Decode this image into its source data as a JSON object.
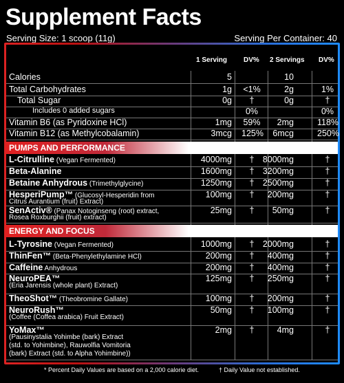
{
  "title": "Supplement Facts",
  "serving_size": "Serving Size: 1 scoop (11g)",
  "serving_per_container": "Serving Per Container: 40",
  "headers": {
    "one": "1 Serving",
    "dv1": "DV%",
    "two": "2 Servings",
    "dv2": "DV%"
  },
  "basic": [
    {
      "label": "Calories",
      "v1": "5",
      "d1": "",
      "v2": "10",
      "d2": ""
    },
    {
      "label": "Total Carbohydrates",
      "v1": "1g",
      "d1": "<1%",
      "v2": "2g",
      "d2": "1%"
    },
    {
      "label": "Total Sugar",
      "v1": "0g",
      "d1": "†",
      "v2": "0g",
      "d2": "†"
    },
    {
      "label": "Includes 0 added sugars",
      "v1": "",
      "d1": "0%",
      "v2": "",
      "d2": "0%"
    },
    {
      "label": "Vitamin B6 (as Pyridoxine HCl)",
      "v1": "1mg",
      "d1": "59%",
      "v2": "2mg",
      "d2": "118%"
    },
    {
      "label": "Vitamin B12 (as Methylcobalamin)",
      "v1": "3mcg",
      "d1": "125%",
      "v2": "6mcg",
      "d2": "250%"
    }
  ],
  "section_pumps": "PUMPS AND PERFORMANCE",
  "pumps": [
    {
      "name": "L-Citrulline",
      "desc": " (Vegan Fermented)",
      "l2": "",
      "v1": "4000mg",
      "d1": "†",
      "v2": "8000mg",
      "d2": "†"
    },
    {
      "name": "Beta-Alanine",
      "desc": "",
      "l2": "",
      "v1": "1600mg",
      "d1": "†",
      "v2": "3200mg",
      "d2": "†"
    },
    {
      "name": "Betaine Anhydrous",
      "desc": " (Trimethylglycine)",
      "l2": "",
      "v1": "1250mg",
      "d1": "†",
      "v2": "2500mg",
      "d2": "†"
    },
    {
      "name": "HesperiPump™",
      "desc": " (Glucosyl-Hesperidin from",
      "l2": "Citrus Aurantium (fruit) Extract)",
      "v1": "100mg",
      "d1": "†",
      "v2": "200mg",
      "d2": "†"
    },
    {
      "name": "SenActiv®",
      "desc": " (Panax Notoginseng (root) extract,",
      "l2": "Rosea Roxburghii (fruit) extract)",
      "v1": "25mg",
      "d1": "†",
      "v2": "50mg",
      "d2": "†"
    }
  ],
  "section_energy": "ENERGY AND FOCUS",
  "energy": [
    {
      "name": "L-Tyrosine",
      "desc": " (Vegan Fermented)",
      "l2": "",
      "v1": "1000mg",
      "d1": "†",
      "v2": "2000mg",
      "d2": "†"
    },
    {
      "name": "ThinFen™",
      "desc": " (Beta-Phenylethylamine HCl)",
      "l2": "",
      "v1": "200mg",
      "d1": "†",
      "v2": "400mg",
      "d2": "†"
    },
    {
      "name": "Caffeine",
      "desc": " Anhydrous",
      "l2": "",
      "v1": "200mg",
      "d1": "†",
      "v2": "400mg",
      "d2": "†"
    },
    {
      "name": "NeuroPEA™",
      "desc": "",
      "l2": "(Eria Jarensis (whole plant) Extract)",
      "v1": "125mg",
      "d1": "†",
      "v2": "250mg",
      "d2": "†"
    },
    {
      "name": "TheoShot™",
      "desc": " (Theobromine Gallate)",
      "l2": "",
      "v1": "100mg",
      "d1": "†",
      "v2": "200mg",
      "d2": "†"
    },
    {
      "name": "NeuroRush™",
      "desc": "",
      "l2": "(Coffee (Coffea arabica) Fruit Extract)",
      "v1": "50mg",
      "d1": "†",
      "v2": "100mg",
      "d2": "†"
    },
    {
      "name": "YoMax™",
      "desc": "",
      "l2": "(Pausinystalia Yohimbe (bark) Extract",
      "l3": "(std. to Yohimbine), Rauwolfia Vomitoria",
      "l4": "(bark) Extract (std. to Alpha Yohimbine))",
      "v1": "2mg",
      "d1": "†",
      "v2": "4mg",
      "d2": "†"
    }
  ],
  "footnote_left": "* Percent Daily Values are based on a 2,000 calorie diet.",
  "footnote_right": "† Daily Value not established."
}
